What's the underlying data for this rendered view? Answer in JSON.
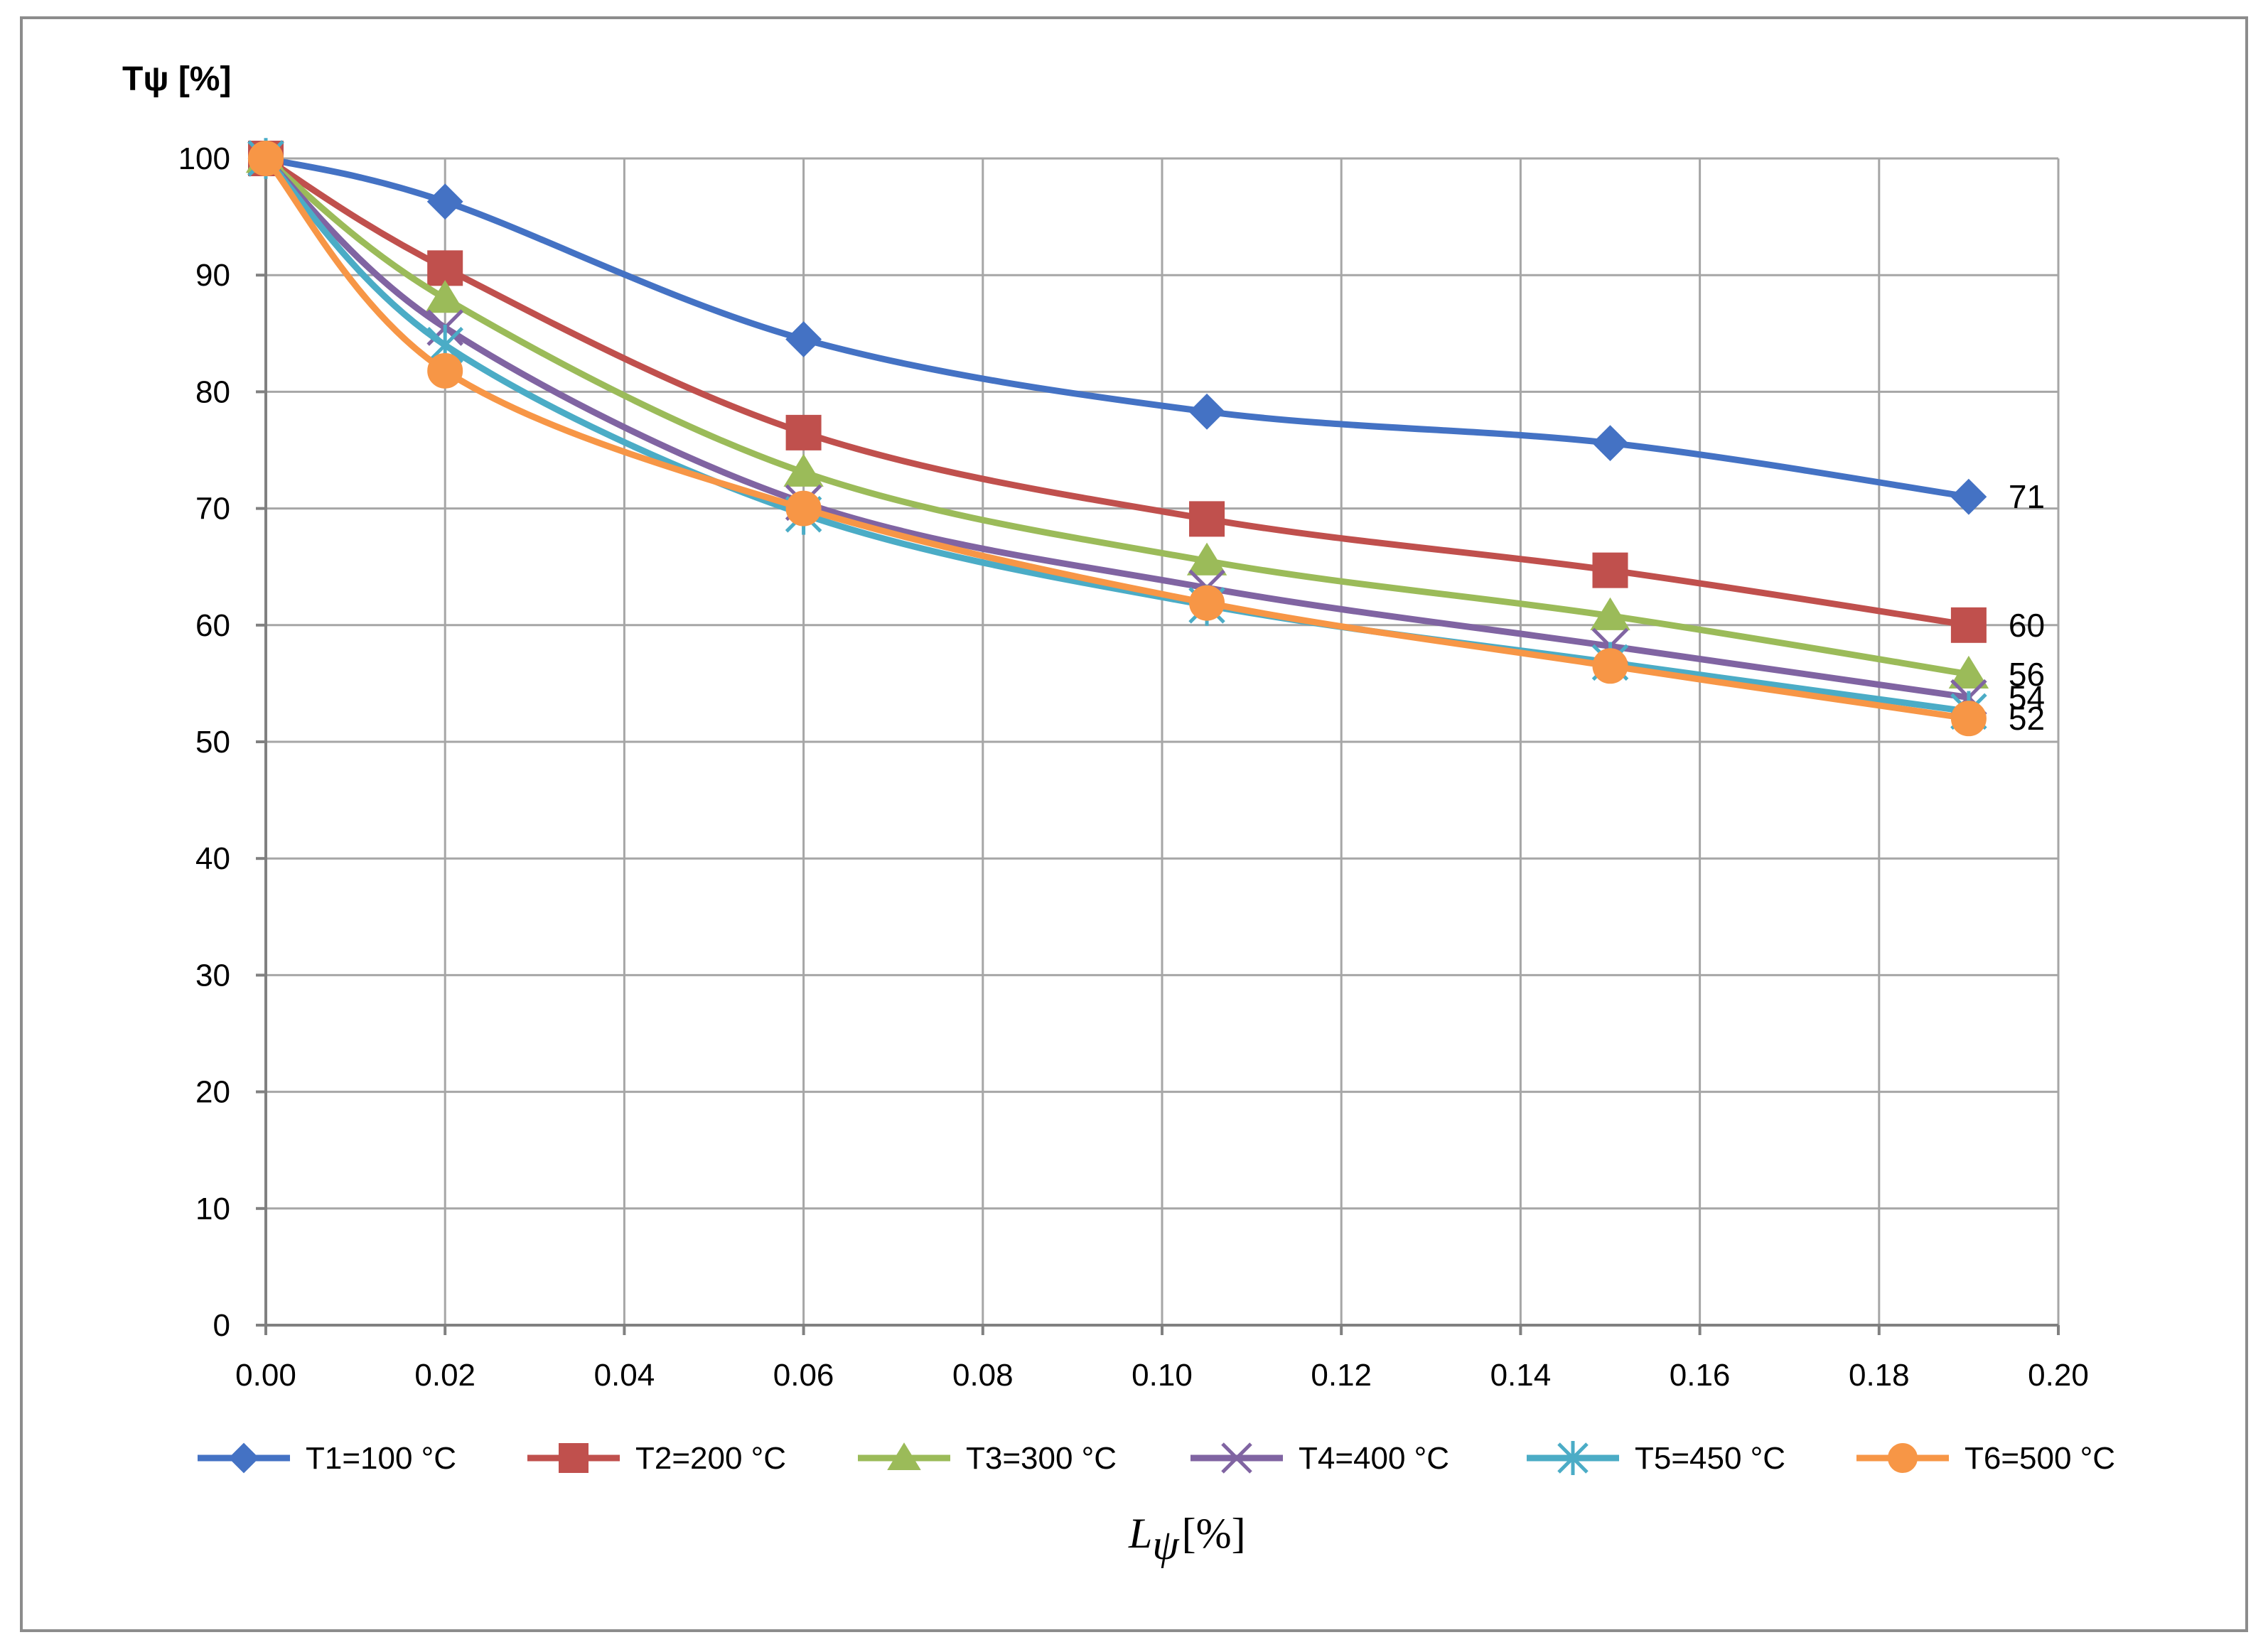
{
  "chart_data": {
    "type": "line",
    "y_title": "Tψ [%]",
    "x_title": {
      "symbol": "L",
      "subscript": "ψ",
      "unit": "[%]"
    },
    "xlim": [
      0,
      0.2
    ],
    "ylim": [
      0,
      100
    ],
    "x_ticks": [
      0,
      0.02,
      0.04,
      0.06,
      0.08,
      0.1,
      0.12,
      0.14,
      0.16,
      0.18,
      0.2
    ],
    "x_tick_labels": [
      "0.00",
      "0.02",
      "0.04",
      "0.06",
      "0.08",
      "0.10",
      "0.12",
      "0.14",
      "0.16",
      "0.18",
      "0.20"
    ],
    "y_ticks": [
      0,
      10,
      20,
      30,
      40,
      50,
      60,
      70,
      80,
      90,
      100
    ],
    "y_tick_labels": [
      "0",
      "10",
      "20",
      "30",
      "40",
      "50",
      "60",
      "70",
      "80",
      "90",
      "100"
    ],
    "grid": true,
    "legend_position": "bottom",
    "x": [
      0,
      0.02,
      0.06,
      0.105,
      0.15,
      0.19
    ],
    "series": [
      {
        "name": "T1=100 °C",
        "color": "#4472C4",
        "marker": "diamond",
        "values": [
          100,
          96.3,
          84.5,
          78.3,
          75.6,
          71
        ],
        "end_label": "71"
      },
      {
        "name": "T2=200 °C",
        "color": "#C0504D",
        "marker": "square",
        "values": [
          100,
          90.6,
          76.5,
          69.1,
          64.7,
          60
        ],
        "end_label": "60"
      },
      {
        "name": "T3=300 °C",
        "color": "#9BBB59",
        "marker": "triangle",
        "values": [
          100,
          88,
          73.1,
          65.5,
          60.8,
          55.8
        ],
        "end_label": "56"
      },
      {
        "name": "T4=400 °C",
        "color": "#8064A2",
        "marker": "x",
        "values": [
          100,
          85.5,
          70.5,
          63.2,
          58.2,
          53.8
        ],
        "end_label": "54"
      },
      {
        "name": "T5=450 °C",
        "color": "#4BACC6",
        "marker": "star",
        "values": [
          100,
          84,
          69.5,
          61.7,
          56.8,
          52.6
        ],
        "end_label": ""
      },
      {
        "name": "T6=500 °C",
        "color": "#F79646",
        "marker": "circle",
        "values": [
          100,
          81.8,
          70,
          61.9,
          56.5,
          52
        ],
        "end_label": "52"
      }
    ]
  }
}
